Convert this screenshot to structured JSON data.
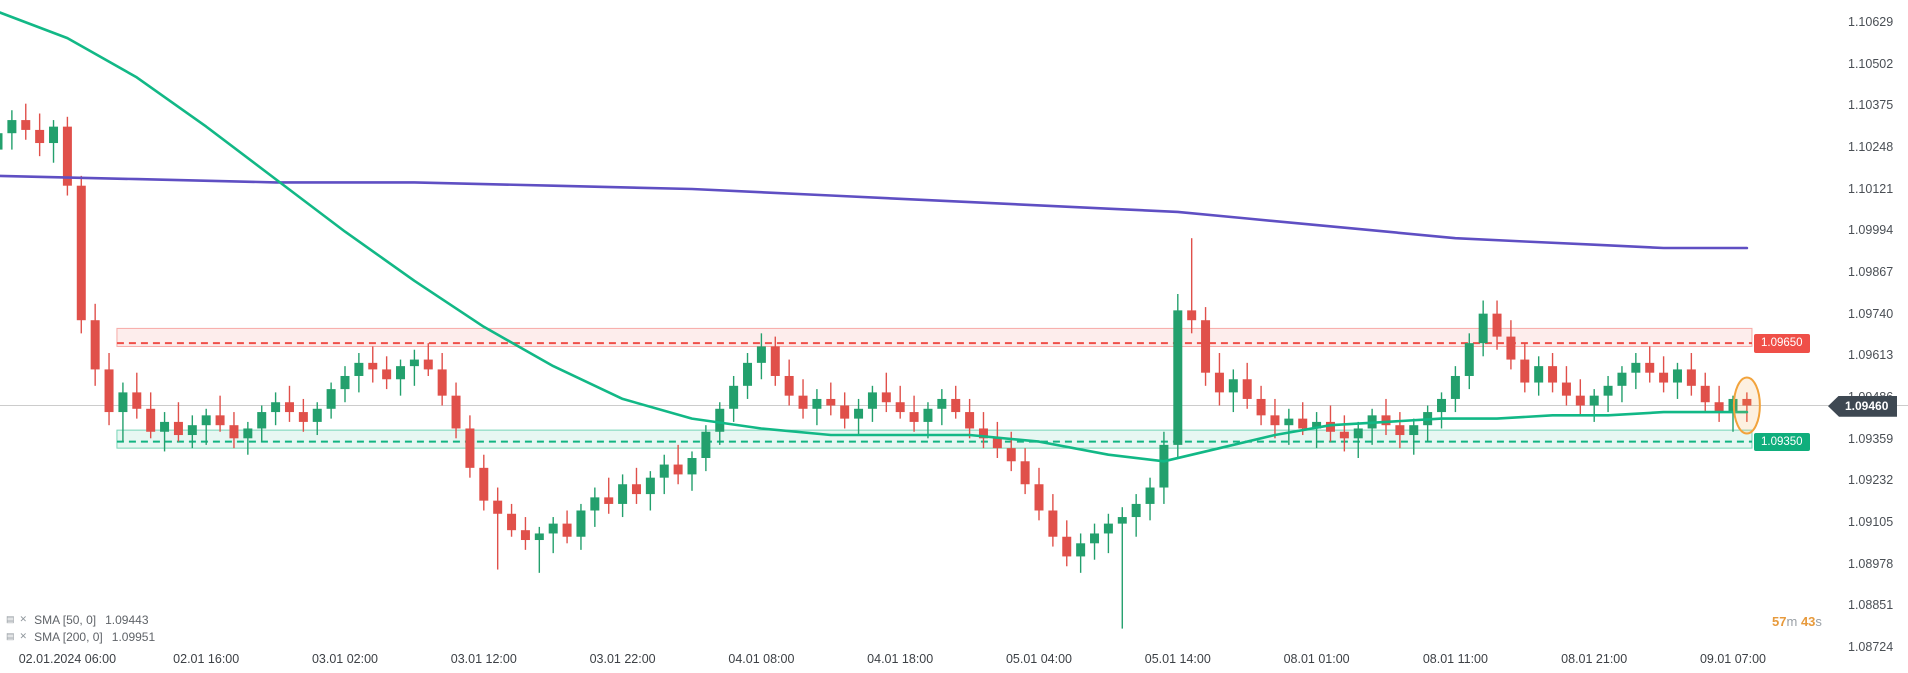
{
  "chart_data": {
    "type": "candlestick",
    "y_axis": {
      "min": 1.08724,
      "max": 1.10629,
      "ticks": [
        "1.10629",
        "1.10502",
        "1.10375",
        "1.10248",
        "1.10121",
        "1.09994",
        "1.09867",
        "1.09740",
        "1.09613",
        "1.09486",
        "1.09359",
        "1.09232",
        "1.09105",
        "1.08978",
        "1.08851",
        "1.08724"
      ]
    },
    "x_axis": {
      "tick_indices": [
        5,
        15,
        25,
        35,
        45,
        55,
        65,
        75,
        85,
        95,
        105,
        115,
        125
      ],
      "tick_labels": [
        "02.01.2024 06:00",
        "02.01 16:00",
        "03.01 02:00",
        "03.01 12:00",
        "03.01 22:00",
        "04.01 08:00",
        "04.01 18:00",
        "05.01 04:00",
        "05.01 14:00",
        "08.01 01:00",
        "08.01 11:00",
        "08.01 21:00",
        "09.01 07:00"
      ]
    },
    "candles": [
      [
        1.1024,
        1.1032,
        1.1019,
        1.1029
      ],
      [
        1.1029,
        1.1036,
        1.1024,
        1.1033
      ],
      [
        1.1033,
        1.1038,
        1.1027,
        1.103
      ],
      [
        1.103,
        1.1035,
        1.1022,
        1.1026
      ],
      [
        1.1026,
        1.1033,
        1.102,
        1.1031
      ],
      [
        1.1031,
        1.1034,
        1.101,
        1.1013
      ],
      [
        1.1013,
        1.1016,
        1.0968,
        1.0972
      ],
      [
        1.0972,
        1.0977,
        1.0952,
        1.0957
      ],
      [
        1.0957,
        1.0962,
        1.094,
        1.0944
      ],
      [
        1.0944,
        1.0953,
        1.0935,
        1.095
      ],
      [
        1.095,
        1.0956,
        1.0942,
        1.0945
      ],
      [
        1.0945,
        1.095,
        1.0936,
        1.0938
      ],
      [
        1.0938,
        1.0944,
        1.0932,
        1.0941
      ],
      [
        1.0941,
        1.0947,
        1.0935,
        1.0937
      ],
      [
        1.0937,
        1.0943,
        1.0933,
        1.094
      ],
      [
        1.094,
        1.0945,
        1.0934,
        1.0943
      ],
      [
        1.0943,
        1.0949,
        1.0938,
        1.094
      ],
      [
        1.094,
        1.0944,
        1.0933,
        1.0936
      ],
      [
        1.0936,
        1.0941,
        1.0931,
        1.0939
      ],
      [
        1.0939,
        1.0946,
        1.0935,
        1.0944
      ],
      [
        1.0944,
        1.095,
        1.094,
        1.0947
      ],
      [
        1.0947,
        1.0952,
        1.0941,
        1.0944
      ],
      [
        1.0944,
        1.0948,
        1.0938,
        1.0941
      ],
      [
        1.0941,
        1.0947,
        1.0937,
        1.0945
      ],
      [
        1.0945,
        1.0953,
        1.0942,
        1.0951
      ],
      [
        1.0951,
        1.0958,
        1.0947,
        1.0955
      ],
      [
        1.0955,
        1.0962,
        1.095,
        1.0959
      ],
      [
        1.0959,
        1.0964,
        1.0953,
        1.0957
      ],
      [
        1.0957,
        1.0961,
        1.0951,
        1.0954
      ],
      [
        1.0954,
        1.096,
        1.0949,
        1.0958
      ],
      [
        1.0958,
        1.0963,
        1.0952,
        1.096
      ],
      [
        1.096,
        1.0965,
        1.0955,
        1.0957
      ],
      [
        1.0957,
        1.0962,
        1.0946,
        1.0949
      ],
      [
        1.0949,
        1.0953,
        1.0936,
        1.0939
      ],
      [
        1.0939,
        1.0943,
        1.0924,
        1.0927
      ],
      [
        1.0927,
        1.0931,
        1.0914,
        1.0917
      ],
      [
        1.0917,
        1.0921,
        1.0896,
        1.0913
      ],
      [
        1.0913,
        1.0916,
        1.0906,
        1.0908
      ],
      [
        1.0908,
        1.0912,
        1.0902,
        1.0905
      ],
      [
        1.0905,
        1.0909,
        1.0895,
        1.0907
      ],
      [
        1.0907,
        1.0912,
        1.0901,
        1.091
      ],
      [
        1.091,
        1.0914,
        1.0904,
        1.0906
      ],
      [
        1.0906,
        1.0916,
        1.0902,
        1.0914
      ],
      [
        1.0914,
        1.0921,
        1.0909,
        1.0918
      ],
      [
        1.0918,
        1.0924,
        1.0913,
        1.0916
      ],
      [
        1.0916,
        1.0925,
        1.0912,
        1.0922
      ],
      [
        1.0922,
        1.0927,
        1.0916,
        1.0919
      ],
      [
        1.0919,
        1.0926,
        1.0914,
        1.0924
      ],
      [
        1.0924,
        1.0931,
        1.0919,
        1.0928
      ],
      [
        1.0928,
        1.0934,
        1.0922,
        1.0925
      ],
      [
        1.0925,
        1.0932,
        1.092,
        1.093
      ],
      [
        1.093,
        1.094,
        1.0926,
        1.0938
      ],
      [
        1.0938,
        1.0947,
        1.0934,
        1.0945
      ],
      [
        1.0945,
        1.0955,
        1.0941,
        1.0952
      ],
      [
        1.0952,
        1.0962,
        1.0948,
        1.0959
      ],
      [
        1.0959,
        1.0968,
        1.0954,
        1.0964
      ],
      [
        1.0964,
        1.0967,
        1.0952,
        1.0955
      ],
      [
        1.0955,
        1.096,
        1.0946,
        1.0949
      ],
      [
        1.0949,
        1.0954,
        1.0942,
        1.0945
      ],
      [
        1.0945,
        1.0951,
        1.094,
        1.0948
      ],
      [
        1.0948,
        1.0953,
        1.0943,
        1.0946
      ],
      [
        1.0946,
        1.095,
        1.0939,
        1.0942
      ],
      [
        1.0942,
        1.0948,
        1.0937,
        1.0945
      ],
      [
        1.0945,
        1.0952,
        1.0941,
        1.095
      ],
      [
        1.095,
        1.0956,
        1.0944,
        1.0947
      ],
      [
        1.0947,
        1.0952,
        1.0942,
        1.0944
      ],
      [
        1.0944,
        1.0949,
        1.0938,
        1.0941
      ],
      [
        1.0941,
        1.0947,
        1.0936,
        1.0945
      ],
      [
        1.0945,
        1.0951,
        1.094,
        1.0948
      ],
      [
        1.0948,
        1.0952,
        1.0942,
        1.0944
      ],
      [
        1.0944,
        1.0948,
        1.0936,
        1.0939
      ],
      [
        1.0939,
        1.0944,
        1.0933,
        1.0936
      ],
      [
        1.0936,
        1.0941,
        1.093,
        1.0933
      ],
      [
        1.0933,
        1.0938,
        1.0926,
        1.0929
      ],
      [
        1.0929,
        1.0933,
        1.0919,
        1.0922
      ],
      [
        1.0922,
        1.0927,
        1.0911,
        1.0914
      ],
      [
        1.0914,
        1.0919,
        1.0903,
        1.0906
      ],
      [
        1.0906,
        1.0911,
        1.0897,
        1.09
      ],
      [
        1.09,
        1.0907,
        1.0895,
        1.0904
      ],
      [
        1.0904,
        1.091,
        1.0899,
        1.0907
      ],
      [
        1.0907,
        1.0913,
        1.0901,
        1.091
      ],
      [
        1.091,
        1.0915,
        1.0878,
        1.0912
      ],
      [
        1.0912,
        1.0919,
        1.0906,
        1.0916
      ],
      [
        1.0916,
        1.0924,
        1.0911,
        1.0921
      ],
      [
        1.0921,
        1.0938,
        1.0916,
        1.0934
      ],
      [
        1.0934,
        1.098,
        1.093,
        1.0975
      ],
      [
        1.0975,
        1.0997,
        1.0968,
        1.0972
      ],
      [
        1.0972,
        1.0976,
        1.0952,
        1.0956
      ],
      [
        1.0956,
        1.0962,
        1.0946,
        1.095
      ],
      [
        1.095,
        1.0957,
        1.0944,
        1.0954
      ],
      [
        1.0954,
        1.0959,
        1.0945,
        1.0948
      ],
      [
        1.0948,
        1.0952,
        1.094,
        1.0943
      ],
      [
        1.0943,
        1.0948,
        1.0936,
        1.094
      ],
      [
        1.094,
        1.0945,
        1.0934,
        1.0942
      ],
      [
        1.0942,
        1.0947,
        1.0937,
        1.0939
      ],
      [
        1.0939,
        1.0944,
        1.0933,
        1.0941
      ],
      [
        1.0941,
        1.0946,
        1.0935,
        1.0938
      ],
      [
        1.0938,
        1.0943,
        1.0932,
        1.0936
      ],
      [
        1.0936,
        1.0941,
        1.093,
        1.0939
      ],
      [
        1.0939,
        1.0945,
        1.0934,
        1.0943
      ],
      [
        1.0943,
        1.0948,
        1.0937,
        1.094
      ],
      [
        1.094,
        1.0944,
        1.0933,
        1.0937
      ],
      [
        1.0937,
        1.0942,
        1.0931,
        1.094
      ],
      [
        1.094,
        1.0946,
        1.0935,
        1.0944
      ],
      [
        1.0944,
        1.095,
        1.0939,
        1.0948
      ],
      [
        1.0948,
        1.0958,
        1.0944,
        1.0955
      ],
      [
        1.0955,
        1.0968,
        1.0951,
        1.0965
      ],
      [
        1.0965,
        1.0978,
        1.0961,
        1.0974
      ],
      [
        1.0974,
        1.0978,
        1.0963,
        1.0967
      ],
      [
        1.0967,
        1.0972,
        1.0957,
        1.096
      ],
      [
        1.096,
        1.0965,
        1.095,
        1.0953
      ],
      [
        1.0953,
        1.0961,
        1.0949,
        1.0958
      ],
      [
        1.0958,
        1.0962,
        1.095,
        1.0953
      ],
      [
        1.0953,
        1.0958,
        1.0946,
        1.0949
      ],
      [
        1.0949,
        1.0954,
        1.0943,
        1.0946
      ],
      [
        1.0946,
        1.0951,
        1.0941,
        1.0949
      ],
      [
        1.0949,
        1.0955,
        1.0944,
        1.0952
      ],
      [
        1.0952,
        1.0958,
        1.0947,
        1.0956
      ],
      [
        1.0956,
        1.0962,
        1.0951,
        1.0959
      ],
      [
        1.0959,
        1.0964,
        1.0953,
        1.0956
      ],
      [
        1.0956,
        1.0961,
        1.095,
        1.0953
      ],
      [
        1.0953,
        1.0959,
        1.0948,
        1.0957
      ],
      [
        1.0957,
        1.0962,
        1.0949,
        1.0952
      ],
      [
        1.0952,
        1.0956,
        1.0944,
        1.0947
      ],
      [
        1.0947,
        1.0952,
        1.0941,
        1.0944
      ],
      [
        1.0944,
        1.0949,
        1.0938,
        1.0948
      ],
      [
        1.0948,
        1.095,
        1.0941,
        1.0946
      ]
    ],
    "sma50": {
      "name": "SMA [50, 0]",
      "value_label": "1.09443",
      "points": [
        [
          0,
          1.1066
        ],
        [
          5,
          1.1058
        ],
        [
          10,
          1.1046
        ],
        [
          15,
          1.1031
        ],
        [
          20,
          1.1015
        ],
        [
          25,
          1.0999
        ],
        [
          30,
          1.0984
        ],
        [
          35,
          1.097
        ],
        [
          40,
          1.0958
        ],
        [
          45,
          1.0948
        ],
        [
          50,
          1.0942
        ],
        [
          55,
          1.0939
        ],
        [
          60,
          1.0937
        ],
        [
          65,
          1.0937
        ],
        [
          70,
          1.0937
        ],
        [
          75,
          1.0935
        ],
        [
          80,
          1.0931
        ],
        [
          84,
          1.0929
        ],
        [
          88,
          1.0933
        ],
        [
          92,
          1.0937
        ],
        [
          96,
          1.094
        ],
        [
          100,
          1.0941
        ],
        [
          104,
          1.0942
        ],
        [
          108,
          1.0942
        ],
        [
          112,
          1.0943
        ],
        [
          116,
          1.0943
        ],
        [
          120,
          1.0944
        ],
        [
          126,
          1.0944
        ]
      ]
    },
    "sma200": {
      "name": "SMA [200, 0]",
      "value_label": "1.09951",
      "points": [
        [
          0,
          1.1016
        ],
        [
          10,
          1.1015
        ],
        [
          20,
          1.1014
        ],
        [
          30,
          1.1014
        ],
        [
          40,
          1.1013
        ],
        [
          50,
          1.1012
        ],
        [
          60,
          1.101
        ],
        [
          70,
          1.1008
        ],
        [
          80,
          1.1006
        ],
        [
          85,
          1.1005
        ],
        [
          90,
          1.1003
        ],
        [
          95,
          1.1001
        ],
        [
          100,
          1.0999
        ],
        [
          105,
          1.0997
        ],
        [
          110,
          1.0996
        ],
        [
          115,
          1.0995
        ],
        [
          120,
          1.0994
        ],
        [
          126,
          1.0994
        ]
      ]
    },
    "zones": {
      "resistance": {
        "top": 1.09695,
        "bottom": 1.0964,
        "line": 1.0965,
        "label": "1.09650",
        "start_index": 9
      },
      "support": {
        "top": 1.09385,
        "bottom": 1.0933,
        "line": 1.0935,
        "label": "1.09350",
        "start_index": 9
      }
    },
    "current_price": {
      "value": 1.0946,
      "label": "1.09460"
    },
    "highlight": {
      "index": 126,
      "price": 1.0946
    },
    "countdown": {
      "minutes": "57",
      "minutes_unit": "m",
      "seconds": "43",
      "seconds_unit": "s"
    },
    "colors": {
      "up": "#23a06d",
      "down": "#e0504a",
      "sma50": "#12b886",
      "sma200": "#5f4fc3",
      "gridline": "#cccccc",
      "res_fill": "rgba(240,80,72,0.10)",
      "res_stroke": "rgba(240,80,72,0.45)",
      "res_line": "#ef4f48",
      "sup_fill": "rgba(18,180,130,0.10)",
      "sup_stroke": "rgba(18,180,130,0.55)",
      "sup_line": "#12b482",
      "res_chip_bg": "#ef4f48",
      "sup_chip_bg": "#0fae7c",
      "price_chip_bg": "#3e4852",
      "highlight_stroke": "#f2a33c",
      "highlight_fill": "rgba(242,163,60,0.16)"
    }
  }
}
